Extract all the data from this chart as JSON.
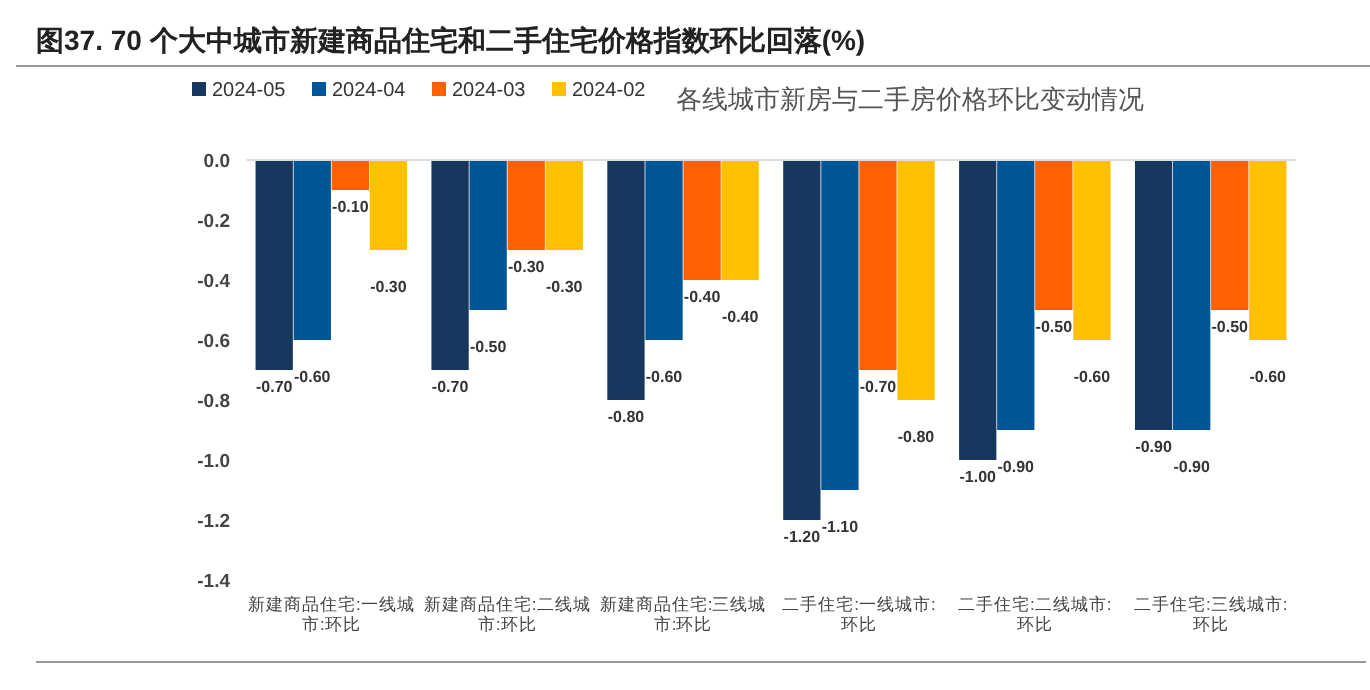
{
  "chart_data": {
    "type": "bar",
    "title": "图37. 70 个大中城市新建商品住宅和二手住宅价格指数环比回落(%)",
    "subtitle": "各线城市新房与二手房价格环比变动情况",
    "categories": [
      "新建商品住宅:一线城市:环比",
      "新建商品住宅:二线城市:环比",
      "新建商品住宅:三线城市:环比",
      "二手住宅:一线城市:环比",
      "二手住宅:二线城市:环比",
      "二手住宅:三线城市:环比"
    ],
    "series": [
      {
        "name": "2024-05",
        "color": "#17375e",
        "values": [
          -0.7,
          -0.7,
          -0.8,
          -1.2,
          -1.0,
          -0.9
        ],
        "value_labels": [
          "-0.70",
          "-0.70",
          "-0.80",
          "-1.20",
          "-1.00",
          "-0.90"
        ]
      },
      {
        "name": "2024-04",
        "color": "#005597",
        "values": [
          -0.6,
          -0.5,
          -0.6,
          -1.1,
          -0.9,
          -0.9
        ],
        "value_labels": [
          "-0.60",
          "-0.50",
          "-0.60",
          "-1.10",
          "-0.90",
          "-0.90"
        ]
      },
      {
        "name": "2024-03",
        "color": "#ff6000",
        "values": [
          -0.1,
          -0.3,
          -0.4,
          -0.7,
          -0.5,
          -0.5
        ],
        "value_labels": [
          "-0.10",
          "-0.30",
          "-0.40",
          "-0.70",
          "-0.50",
          "-0.50"
        ]
      },
      {
        "name": "2024-02",
        "color": "#ffc000",
        "values": [
          -0.3,
          -0.3,
          -0.4,
          -0.8,
          -0.6,
          -0.6
        ],
        "value_labels": [
          "-0.30",
          "-0.30",
          "-0.40",
          "-0.80",
          "-0.60",
          "-0.60"
        ]
      }
    ],
    "ylim": [
      -1.4,
      0
    ],
    "yticks": [
      {
        "value": 0,
        "label": "0.0"
      },
      {
        "value": -0.2,
        "label": "-0.2"
      },
      {
        "value": -0.4,
        "label": "-0.4"
      },
      {
        "value": -0.6,
        "label": "-0.6"
      },
      {
        "value": -0.8,
        "label": "-0.8"
      },
      {
        "value": -1.0,
        "label": "-1.0"
      },
      {
        "value": -1.2,
        "label": "-1.2"
      },
      {
        "value": -1.4,
        "label": "-1.4"
      }
    ],
    "grid": false,
    "legend": "top"
  }
}
